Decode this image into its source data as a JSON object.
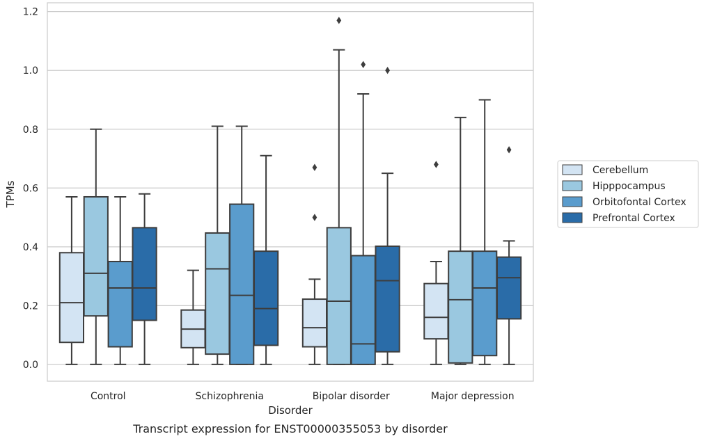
{
  "caption": "Transcript expression for ENST00000355053 by disorder",
  "chart_data": {
    "type": "box",
    "xlabel": "Disorder",
    "ylabel": "TPMs",
    "ylim": [
      -0.057,
      1.23
    ],
    "yticks": [
      0.0,
      0.2,
      0.4,
      0.6,
      0.8,
      1.0,
      1.2
    ],
    "ytick_labels": [
      "0.0",
      "0.2",
      "0.4",
      "0.6",
      "0.8",
      "1.0",
      "1.2"
    ],
    "grid": "horizontal",
    "legend_position": "right",
    "categories": [
      "Control",
      "Schizophrenia",
      "Bipolar disorder",
      "Major depression"
    ],
    "series": [
      {
        "name": "Cerebellum",
        "color": "#d3e4f3",
        "boxes": [
          {
            "whislo": 0.0,
            "q1": 0.075,
            "med": 0.21,
            "q3": 0.38,
            "whishi": 0.57,
            "fliers": []
          },
          {
            "whislo": 0.0,
            "q1": 0.057,
            "med": 0.12,
            "q3": 0.185,
            "whishi": 0.32,
            "fliers": []
          },
          {
            "whislo": 0.0,
            "q1": 0.06,
            "med": 0.125,
            "q3": 0.222,
            "whishi": 0.29,
            "fliers": [
              0.5,
              0.67
            ]
          },
          {
            "whislo": 0.0,
            "q1": 0.087,
            "med": 0.16,
            "q3": 0.275,
            "whishi": 0.35,
            "fliers": [
              0.68
            ]
          }
        ]
      },
      {
        "name": "Hipppocampus",
        "color": "#9ac8e0",
        "boxes": [
          {
            "whislo": 0.0,
            "q1": 0.165,
            "med": 0.31,
            "q3": 0.57,
            "whishi": 0.8,
            "fliers": []
          },
          {
            "whislo": 0.0,
            "q1": 0.035,
            "med": 0.325,
            "q3": 0.447,
            "whishi": 0.81,
            "fliers": []
          },
          {
            "whislo": 0.0,
            "q1": 0.0,
            "med": 0.215,
            "q3": 0.465,
            "whishi": 1.07,
            "fliers": [
              1.17
            ]
          },
          {
            "whislo": 0.0,
            "q1": 0.005,
            "med": 0.22,
            "q3": 0.385,
            "whishi": 0.84,
            "fliers": []
          }
        ]
      },
      {
        "name": "Orbitofontal Cortex",
        "color": "#5a9ccd",
        "boxes": [
          {
            "whislo": 0.0,
            "q1": 0.06,
            "med": 0.26,
            "q3": 0.35,
            "whishi": 0.57,
            "fliers": []
          },
          {
            "whislo": 0.0,
            "q1": 0.0,
            "med": 0.235,
            "q3": 0.545,
            "whishi": 0.81,
            "fliers": []
          },
          {
            "whislo": 0.0,
            "q1": 0.0,
            "med": 0.07,
            "q3": 0.37,
            "whishi": 0.92,
            "fliers": [
              1.02
            ]
          },
          {
            "whislo": 0.0,
            "q1": 0.03,
            "med": 0.26,
            "q3": 0.385,
            "whishi": 0.9,
            "fliers": []
          }
        ]
      },
      {
        "name": "Prefrontal Cortex",
        "color": "#2a6ca8",
        "boxes": [
          {
            "whislo": 0.0,
            "q1": 0.15,
            "med": 0.26,
            "q3": 0.465,
            "whishi": 0.58,
            "fliers": []
          },
          {
            "whislo": 0.0,
            "q1": 0.065,
            "med": 0.19,
            "q3": 0.385,
            "whishi": 0.71,
            "fliers": []
          },
          {
            "whislo": 0.0,
            "q1": 0.043,
            "med": 0.285,
            "q3": 0.402,
            "whishi": 0.65,
            "fliers": [
              1.0
            ]
          },
          {
            "whislo": 0.0,
            "q1": 0.155,
            "med": 0.295,
            "q3": 0.365,
            "whishi": 0.42,
            "fliers": [
              0.73
            ]
          }
        ]
      }
    ]
  }
}
